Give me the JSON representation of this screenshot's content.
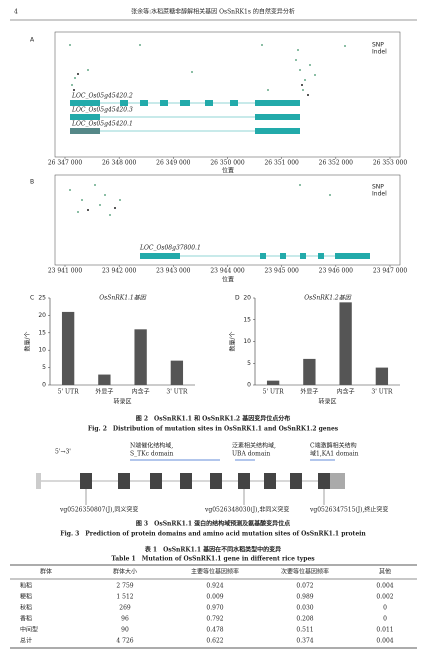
{
  "header": {
    "page_number": "4",
    "running_title": "张余等:水稻蔗糖非醇解相关基因 OsSnRK1s 的自然变异分析"
  },
  "figure2": {
    "panel_a": {
      "label": "A",
      "legend": [
        "SNP",
        "Indel"
      ],
      "genes": [
        "LOC_Os05g45420.2",
        "LOC_Os05g45420.3",
        "LOC_Os05g45420.1"
      ],
      "ticks": [
        "26 347 000",
        "26 348 000",
        "26 349 000",
        "26 350 000",
        "26 351 000",
        "26 352 000",
        "26 353 000"
      ],
      "xlabel": "位置"
    },
    "panel_b": {
      "label": "B",
      "legend": [
        "SNP",
        "Indel"
      ],
      "genes": [
        "LOC_Os08g37800.1"
      ],
      "ticks": [
        "23 941 000",
        "23 942 000",
        "23 943 000",
        "23 944 000",
        "23 945 000",
        "23 946 000",
        "23 947 000"
      ],
      "xlabel": "位置"
    },
    "caption_cn": "图 2　OsSnRK1.1 和 OsSnRK1.2 基因变异位点分布",
    "caption_en": "Fig. 2　Distribution of mutation sites in OsSnRK1.1 and OsSnRK1.2 genes"
  },
  "chart_data": [
    {
      "type": "bar",
      "label": "C",
      "title": "OsSnRK1.1基因",
      "ylabel": "数量/个",
      "xlabel": "转录区",
      "categories": [
        "5' UTR",
        "外显子",
        "内含子",
        "3' UTR"
      ],
      "values": [
        21,
        3,
        16,
        7
      ],
      "color": "#555555",
      "ylim": [
        0,
        25
      ],
      "yticks": [
        0,
        5,
        10,
        15,
        20,
        25
      ]
    },
    {
      "type": "bar",
      "label": "D",
      "title": "OsSnRK1.2基因",
      "ylabel": "数量/个",
      "xlabel": "转录区",
      "categories": [
        "5' UTR",
        "外显子",
        "内含子",
        "3' UTR"
      ],
      "values": [
        1,
        6,
        19,
        4
      ],
      "color": "#555555",
      "ylim": [
        0,
        20
      ],
      "yticks": [
        0,
        5,
        10,
        15,
        20
      ]
    }
  ],
  "figure3": {
    "direction": "5'→3'",
    "domains": [
      [
        "N端催化结构域,",
        "S_TKc domain"
      ],
      [
        "泛素相关结构域,",
        "UBA domain"
      ],
      [
        "C端激酶相关结构",
        "域1,KA1 domain"
      ]
    ],
    "variants": [
      "vg0526350807(J),同义突变",
      "vg0526348030(J),非同义突变",
      "vg0526347515(J),终止突变"
    ],
    "caption_cn": "图 3　OsSnRK1.1 蛋白的结构域预测及氨基酸变异位点",
    "caption_en": "Fig. 3　Prediction of protein domains and amino acid mutation sites of OsSnRK1.1 protein"
  },
  "table": {
    "title_cn": "表 1　OsSnRK1.1 基因在不同水稻类型中的变异",
    "title_en": "Table 1　Mutation of OsSnRK1.1 gene in different rice types",
    "headers": [
      "群体",
      "群体大小",
      "主要等位基因频率",
      "次要等位基因频率",
      "其他"
    ],
    "rows": [
      [
        "籼稻",
        "2 759",
        "0.924",
        "0.072",
        "0.004"
      ],
      [
        "粳稻",
        "1 512",
        "0.009",
        "0.989",
        "0.002"
      ],
      [
        "秋稻",
        "269",
        "0.970",
        "0.030",
        "0"
      ],
      [
        "香稻",
        "96",
        "0.792",
        "0.208",
        "0"
      ],
      [
        "中间型",
        "90",
        "0.478",
        "0.511",
        "0.011"
      ],
      [
        "总计",
        "4 726",
        "0.622",
        "0.374",
        "0.004"
      ]
    ]
  }
}
